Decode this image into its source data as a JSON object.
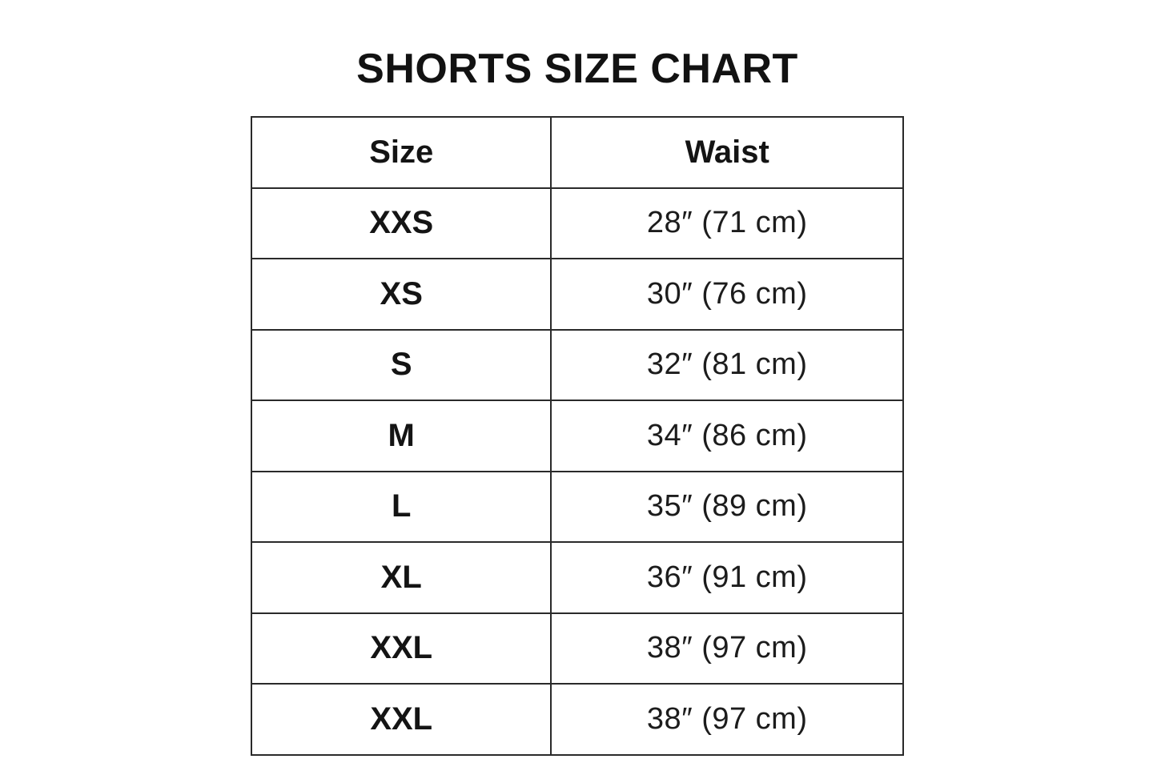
{
  "title": "SHORTS SIZE CHART",
  "table": {
    "headers": {
      "size": "Size",
      "waist": "Waist"
    },
    "rows": [
      {
        "size": "XXS",
        "waist": "28″ (71 cm)"
      },
      {
        "size": "XS",
        "waist": "30″ (76 cm)"
      },
      {
        "size": "S",
        "waist": "32″ (81 cm)"
      },
      {
        "size": "M",
        "waist": "34″ (86 cm)"
      },
      {
        "size": "L",
        "waist": "35″ (89 cm)"
      },
      {
        "size": "XL",
        "waist": "36″ (91 cm)"
      },
      {
        "size": "XXL",
        "waist": "38″ (97 cm)"
      },
      {
        "size": "XXL",
        "waist": "38″ (97 cm)"
      }
    ]
  },
  "colors": {
    "background": "#ffffff",
    "text": "#161616",
    "border": "#2a2a2a"
  },
  "chart_data": {
    "type": "table",
    "title": "SHORTS SIZE CHART",
    "columns": [
      "Size",
      "Waist"
    ],
    "rows": [
      [
        "XXS",
        "28″ (71 cm)"
      ],
      [
        "XS",
        "30″ (76 cm)"
      ],
      [
        "S",
        "32″ (81 cm)"
      ],
      [
        "M",
        "34″ (86 cm)"
      ],
      [
        "L",
        "35″ (89 cm)"
      ],
      [
        "XL",
        "36″ (91 cm)"
      ],
      [
        "XXL",
        "38″ (97 cm)"
      ],
      [
        "XXL",
        "38″ (97 cm)"
      ]
    ],
    "waist_inches": [
      28,
      30,
      32,
      34,
      35,
      36,
      38,
      38
    ],
    "waist_cm": [
      71,
      76,
      81,
      86,
      89,
      91,
      97,
      97
    ]
  }
}
